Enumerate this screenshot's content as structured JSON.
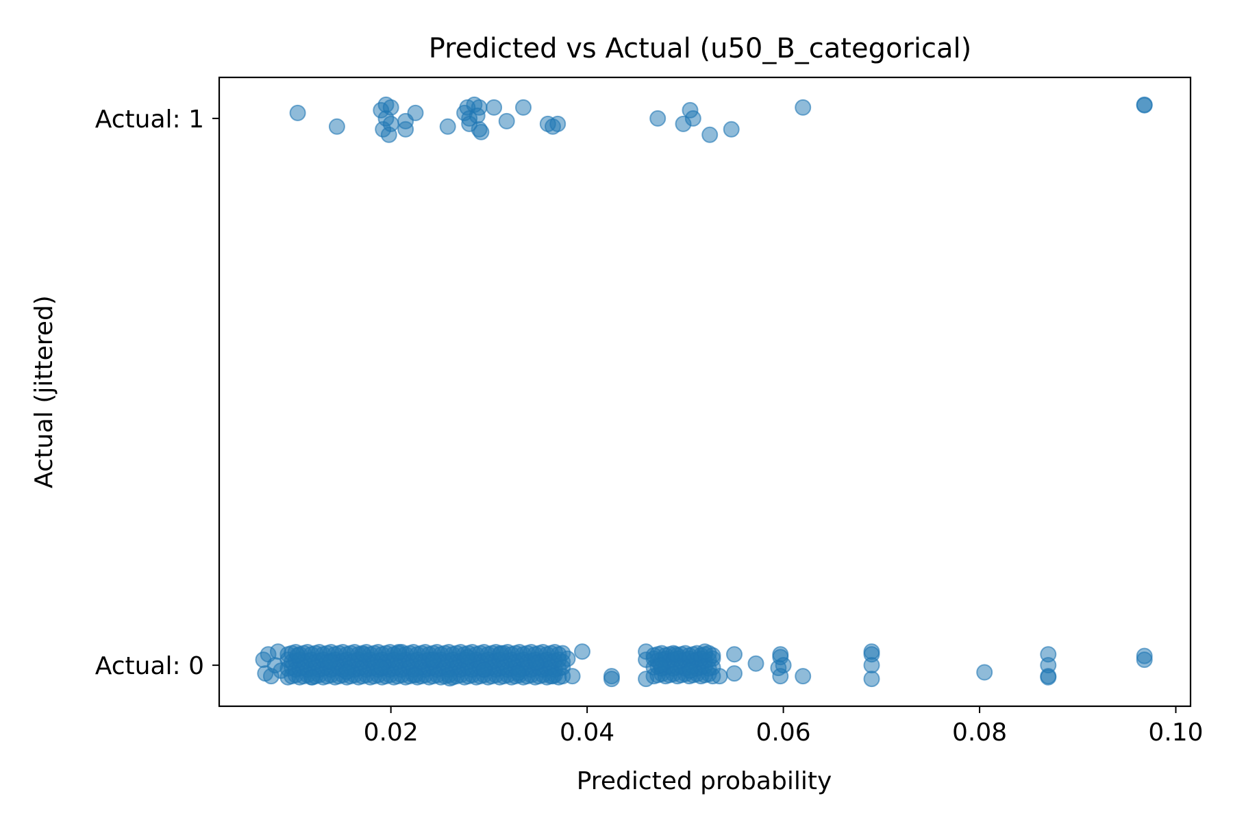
{
  "chart_data": {
    "type": "scatter",
    "title": "Predicted vs Actual (u50_B_categorical)",
    "xlabel": "Predicted probability",
    "ylabel": "Actual (jittered)",
    "xlim": [
      0.0025,
      0.1015
    ],
    "ylim": [
      -0.075,
      1.075
    ],
    "x_ticks": [
      {
        "value": 0.02,
        "label": "0.02"
      },
      {
        "value": 0.04,
        "label": "0.04"
      },
      {
        "value": 0.06,
        "label": "0.06"
      },
      {
        "value": 0.08,
        "label": "0.08"
      },
      {
        "value": 0.1,
        "label": "0.10"
      }
    ],
    "y_ticks": [
      {
        "value": 0,
        "label": "Actual: 0"
      },
      {
        "value": 1,
        "label": "Actual: 1"
      }
    ],
    "grid": false,
    "marker_color": "#1f77b4",
    "marker_alpha": 0.5,
    "points_actual_1": [
      [
        0.0105,
        1.01
      ],
      [
        0.0145,
        0.985
      ],
      [
        0.019,
        1.015
      ],
      [
        0.0192,
        0.98
      ],
      [
        0.0195,
        1.0
      ],
      [
        0.0195,
        1.025
      ],
      [
        0.0198,
        0.97
      ],
      [
        0.02,
        0.99
      ],
      [
        0.02,
        1.02
      ],
      [
        0.0215,
        0.98
      ],
      [
        0.0215,
        0.995
      ],
      [
        0.0225,
        1.01
      ],
      [
        0.0258,
        0.985
      ],
      [
        0.0275,
        1.01
      ],
      [
        0.0278,
        1.02
      ],
      [
        0.028,
        1.0
      ],
      [
        0.028,
        0.99
      ],
      [
        0.0285,
        1.025
      ],
      [
        0.0288,
        1.005
      ],
      [
        0.029,
        0.98
      ],
      [
        0.029,
        1.02
      ],
      [
        0.0292,
        0.975
      ],
      [
        0.0305,
        1.02
      ],
      [
        0.0318,
        0.995
      ],
      [
        0.0335,
        1.02
      ],
      [
        0.036,
        0.99
      ],
      [
        0.0365,
        0.985
      ],
      [
        0.037,
        0.99
      ],
      [
        0.0472,
        1.0
      ],
      [
        0.0505,
        1.015
      ],
      [
        0.0508,
        1.0
      ],
      [
        0.0498,
        0.99
      ],
      [
        0.0525,
        0.97
      ],
      [
        0.0547,
        0.98
      ],
      [
        0.062,
        1.02
      ],
      [
        0.0968,
        1.025
      ],
      [
        0.0968,
        1.024
      ]
    ],
    "points_actual_0": [
      [
        0.007,
        0.01
      ],
      [
        0.0072,
        -0.015
      ],
      [
        0.0075,
        0.02
      ],
      [
        0.0078,
        -0.02
      ],
      [
        0.0082,
        0.0
      ],
      [
        0.0085,
        0.025
      ],
      [
        0.0088,
        -0.01
      ],
      [
        0.0105,
        0.018
      ],
      [
        0.012,
        -0.022
      ],
      [
        0.0138,
        0.006
      ],
      [
        0.0155,
        -0.012
      ],
      [
        0.0172,
        0.02
      ],
      [
        0.019,
        -0.004
      ],
      [
        0.0208,
        0.024
      ],
      [
        0.0225,
        -0.018
      ],
      [
        0.0243,
        0.01
      ],
      [
        0.026,
        -0.024
      ],
      [
        0.0278,
        0.015
      ],
      [
        0.0295,
        -0.008
      ],
      [
        0.0312,
        0.022
      ],
      [
        0.033,
        -0.014
      ],
      [
        0.0348,
        0.004
      ],
      [
        0.0365,
        -0.02
      ],
      [
        0.038,
        0.012
      ],
      [
        0.0385,
        -0.02
      ],
      [
        0.0395,
        0.025
      ],
      [
        0.0425,
        -0.02
      ],
      [
        0.0425,
        -0.025
      ],
      [
        0.046,
        0.025
      ],
      [
        0.046,
        0.01
      ],
      [
        0.046,
        -0.025
      ],
      [
        0.0475,
        0.0
      ],
      [
        0.049,
        0.02
      ],
      [
        0.0505,
        -0.01
      ],
      [
        0.052,
        0.025
      ],
      [
        0.0535,
        -0.02
      ],
      [
        0.055,
        0.02
      ],
      [
        0.055,
        -0.015
      ],
      [
        0.0572,
        0.003
      ],
      [
        0.0595,
        -0.005
      ],
      [
        0.0597,
        0.02
      ],
      [
        0.0597,
        0.015
      ],
      [
        0.0597,
        -0.02
      ],
      [
        0.06,
        0.0
      ],
      [
        0.062,
        -0.02
      ],
      [
        0.069,
        0.025
      ],
      [
        0.069,
        0.02
      ],
      [
        0.069,
        0.0
      ],
      [
        0.069,
        -0.025
      ],
      [
        0.0805,
        -0.013
      ],
      [
        0.087,
        0.02
      ],
      [
        0.087,
        0.0
      ],
      [
        0.087,
        -0.02
      ],
      [
        0.087,
        -0.022
      ],
      [
        0.0968,
        0.017
      ],
      [
        0.0968,
        0.01
      ]
    ],
    "dense_band_0": {
      "x_min": 0.0095,
      "x_max": 0.0375,
      "step": 0.0004,
      "jitter": [
        -0.02,
        -0.006,
        0.008,
        0.022
      ]
    },
    "dense_band_0b": {
      "x_min": 0.0468,
      "x_max": 0.0528,
      "step": 0.0004,
      "jitter": [
        -0.018,
        -0.004,
        0.01,
        0.02
      ]
    }
  }
}
